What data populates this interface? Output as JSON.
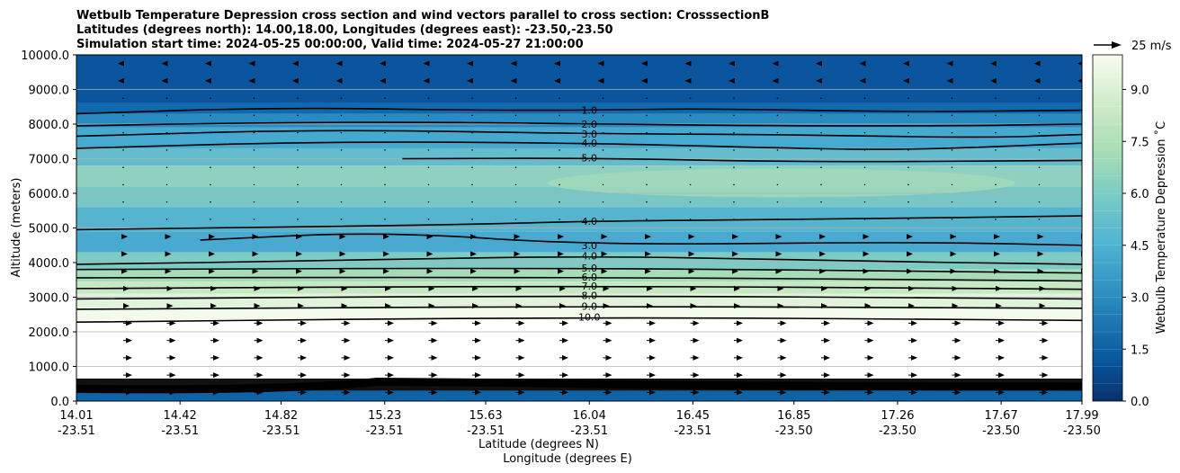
{
  "chart_data": {
    "type": "contour",
    "title_lines": [
      "Wetbulb Temperature Depression cross section and wind vectors parallel to cross section: CrosssectionB",
      "Latitudes (degrees north): 14.00,18.00, Longitudes (degrees east): -23.50,-23.50",
      "Simulation start time: 2024-05-25 00:00:00, Valid time: 2024-05-27 21:00:00"
    ],
    "ylabel": "Altitude (meters)",
    "xlabel": "Latitude (degrees N)",
    "xlabel2": "Longitude (degrees E)",
    "ylim": [
      0,
      10000
    ],
    "y_ticks": [
      "0.0",
      "1000.0",
      "2000.0",
      "3000.0",
      "4000.0",
      "5000.0",
      "6000.0",
      "7000.0",
      "8000.0",
      "9000.0",
      "10000.0"
    ],
    "x_ticks": [
      {
        "lat": "14.01",
        "lon": "-23.51"
      },
      {
        "lat": "14.42",
        "lon": "-23.51"
      },
      {
        "lat": "14.82",
        "lon": "-23.51"
      },
      {
        "lat": "15.23",
        "lon": "-23.51"
      },
      {
        "lat": "15.63",
        "lon": "-23.51"
      },
      {
        "lat": "16.04",
        "lon": "-23.51"
      },
      {
        "lat": "16.45",
        "lon": "-23.51"
      },
      {
        "lat": "16.85",
        "lon": "-23.50"
      },
      {
        "lat": "17.26",
        "lon": "-23.50"
      },
      {
        "lat": "17.67",
        "lon": "-23.50"
      },
      {
        "lat": "17.99",
        "lon": "-23.50"
      }
    ],
    "colorbar": {
      "label": "Wetbulb Temperature Depression ˚C",
      "range": [
        0,
        10
      ],
      "ticks": [
        "0.0",
        "1.5",
        "3.0",
        "4.5",
        "6.0",
        "7.5",
        "9.0"
      ],
      "levels": 20,
      "colors_low_to_high": [
        "#08306b",
        "#08589e",
        "#2b8cbe",
        "#4eb3d3",
        "#7bccc4",
        "#a8ddb5",
        "#ccebc5",
        "#f7fcf0"
      ]
    },
    "contour_levels": [
      "1.0",
      "2.0",
      "3.0",
      "4.0",
      "5.0",
      "6.0",
      "7.0",
      "8.0",
      "9.0",
      "10.0"
    ],
    "contours": [
      {
        "level": 1.0,
        "label": "1.0",
        "points": [
          [
            14.01,
            8300
          ],
          [
            14.8,
            8480
          ],
          [
            15.6,
            8400
          ],
          [
            16.04,
            8400
          ],
          [
            16.5,
            8450
          ],
          [
            17.26,
            8350
          ],
          [
            17.99,
            8400
          ]
        ]
      },
      {
        "level": 2.0,
        "label": "2.0",
        "points": [
          [
            14.01,
            7950
          ],
          [
            14.8,
            8050
          ],
          [
            15.6,
            8050
          ],
          [
            16.04,
            8000
          ],
          [
            16.8,
            7950
          ],
          [
            17.5,
            7950
          ],
          [
            17.99,
            8000
          ]
        ]
      },
      {
        "level": 3.0,
        "label": "3.0",
        "points": [
          [
            14.01,
            7650
          ],
          [
            15.0,
            7850
          ],
          [
            16.04,
            7720
          ],
          [
            16.8,
            7700
          ],
          [
            17.6,
            7600
          ],
          [
            17.99,
            7700
          ]
        ]
      },
      {
        "level": 4.0,
        "label": "4.0",
        "points": [
          [
            14.01,
            7300
          ],
          [
            15.0,
            7500
          ],
          [
            16.04,
            7450
          ],
          [
            16.85,
            7300
          ],
          [
            17.3,
            7250
          ],
          [
            17.99,
            7450
          ]
        ]
      },
      {
        "level": 5.0,
        "label": "5.0",
        "points": [
          [
            15.3,
            7000
          ],
          [
            16.04,
            7020
          ],
          [
            16.9,
            6900
          ],
          [
            17.99,
            6950
          ]
        ]
      },
      {
        "level": 4.0,
        "label": "4.0",
        "points": [
          [
            14.01,
            4950
          ],
          [
            15.6,
            5100
          ],
          [
            16.04,
            5200
          ],
          [
            17.0,
            5250
          ],
          [
            17.99,
            5350
          ]
        ]
      },
      {
        "level": 3.0,
        "label": "3.0",
        "points": [
          [
            14.5,
            4650
          ],
          [
            15.23,
            4900
          ],
          [
            16.04,
            4500
          ],
          [
            17.3,
            4600
          ],
          [
            17.99,
            4500
          ]
        ]
      },
      {
        "level": 4.0,
        "label": "4.0",
        "points": [
          [
            14.01,
            3950
          ],
          [
            15.0,
            4050
          ],
          [
            16.04,
            4200
          ],
          [
            17.0,
            4050
          ],
          [
            17.99,
            3950
          ]
        ]
      },
      {
        "level": 5.0,
        "label": "5.0",
        "points": [
          [
            14.01,
            3800
          ],
          [
            16.04,
            3850
          ],
          [
            17.99,
            3700
          ]
        ]
      },
      {
        "level": 6.0,
        "label": "6.0",
        "points": [
          [
            14.01,
            3560
          ],
          [
            16.04,
            3580
          ],
          [
            17.99,
            3470
          ]
        ]
      },
      {
        "level": 7.0,
        "label": "7.0",
        "points": [
          [
            14.01,
            3250
          ],
          [
            16.04,
            3330
          ],
          [
            17.99,
            3230
          ]
        ]
      },
      {
        "level": 8.0,
        "label": "8.0",
        "points": [
          [
            14.01,
            2950
          ],
          [
            16.04,
            3050
          ],
          [
            17.99,
            2950
          ]
        ]
      },
      {
        "level": 9.0,
        "label": "9.0",
        "points": [
          [
            14.01,
            2650
          ],
          [
            16.04,
            2740
          ],
          [
            17.99,
            2680
          ]
        ]
      },
      {
        "level": 10.0,
        "label": "10.0",
        "points": [
          [
            14.01,
            2280
          ],
          [
            16.04,
            2430
          ],
          [
            17.99,
            2330
          ]
        ]
      }
    ],
    "wind_vector_key": "25 m/s",
    "grid": true
  }
}
